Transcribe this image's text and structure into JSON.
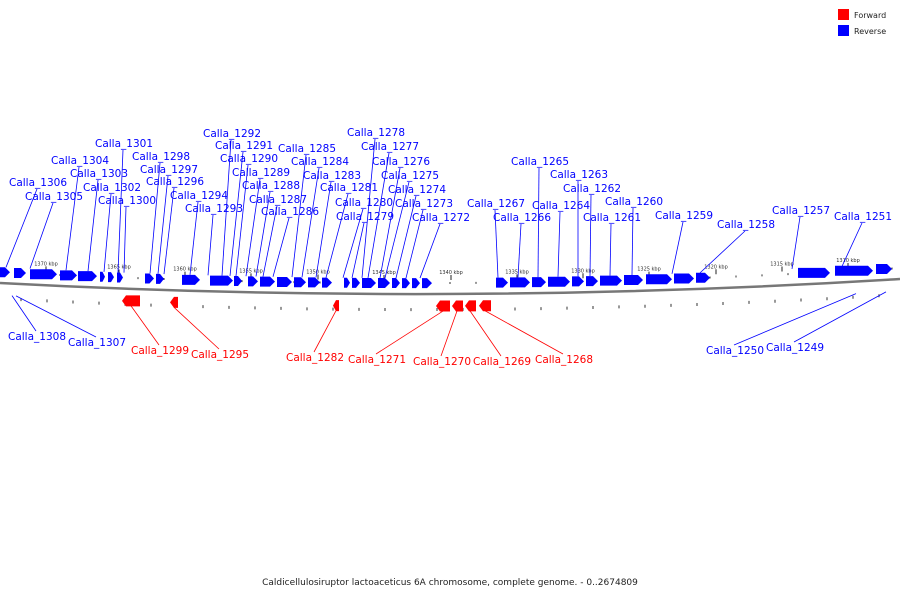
{
  "legend": {
    "forward_label": "Forward",
    "reverse_label": "Reverse",
    "forward_color": "#ff0000",
    "reverse_color": "#0000ff"
  },
  "caption": "Caldicellulosiruptor lactoaceticus 6A chromosome, complete genome. - 0..2674809",
  "scale_labels": [
    "1370 kbp",
    "1365 kbp",
    "1360 kbp",
    "1355 kbp",
    "1350 kbp",
    "1345 kbp",
    "1340 kbp",
    "1335 kbp",
    "1330 kbp",
    "1325 kbp",
    "1320 kbp",
    "1315 kbp",
    "1310 kbp"
  ],
  "reverse_genes": [
    "Calla_1308",
    "Calla_1307",
    "Calla_1306",
    "Calla_1305",
    "Calla_1304",
    "Calla_1303",
    "Calla_1302",
    "Calla_1301",
    "Calla_1300",
    "Calla_1298",
    "Calla_1297",
    "Calla_1296",
    "Calla_1294",
    "Calla_1293",
    "Calla_1292",
    "Calla_1291",
    "Calla_1290",
    "Calla_1289",
    "Calla_1288",
    "Calla_1287",
    "Calla_1286",
    "Calla_1285",
    "Calla_1284",
    "Calla_1283",
    "Calla_1281",
    "Calla_1280",
    "Calla_1279",
    "Calla_1278",
    "Calla_1277",
    "Calla_1276",
    "Calla_1275",
    "Calla_1274",
    "Calla_1273",
    "Calla_1272",
    "Calla_1267",
    "Calla_1266",
    "Calla_1265",
    "Calla_1264",
    "Calla_1263",
    "Calla_1262",
    "Calla_1261",
    "Calla_1260",
    "Calla_1259",
    "Calla_1258",
    "Calla_1257",
    "Calla_1251",
    "Calla_1250",
    "Calla_1249"
  ],
  "forward_genes": [
    "Calla_1299",
    "Calla_1295",
    "Calla_1282",
    "Calla_1271",
    "Calla_1270",
    "Calla_1269",
    "Calla_1268"
  ]
}
